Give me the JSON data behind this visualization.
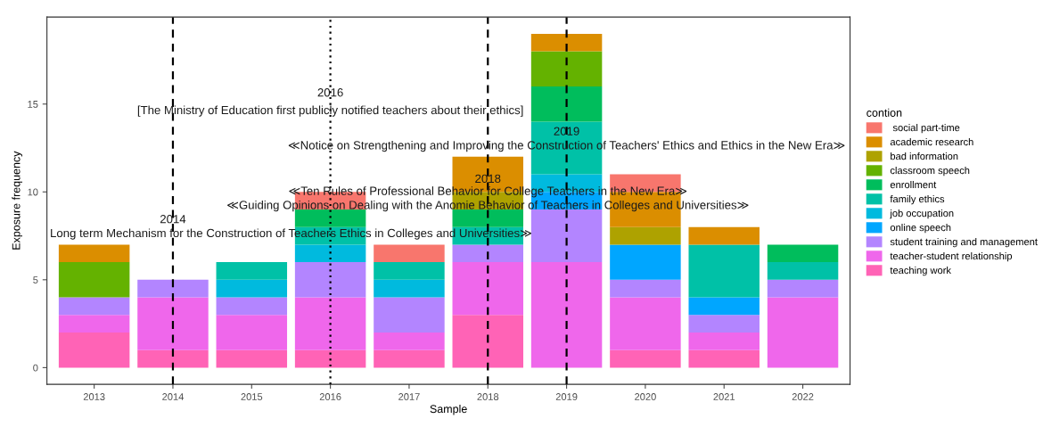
{
  "chart_data": {
    "type": "bar",
    "stacked": true,
    "xlabel": "Sample",
    "ylabel": "Exposure frequency",
    "legend_title": "contion",
    "legend": "right",
    "grid": false,
    "x": [
      2013,
      2014,
      2015,
      2016,
      2017,
      2018,
      2019,
      2020,
      2021,
      2022
    ],
    "xlim": [
      2012.4,
      2022.6
    ],
    "xticks": [
      2013,
      2014,
      2015,
      2016,
      2017,
      2018,
      2019,
      2020,
      2021,
      2022
    ],
    "ylim": [
      -0.95,
      19.95
    ],
    "yticks": [
      0,
      5,
      10,
      15
    ],
    "series": [
      {
        "name": "teaching work",
        "color": "#ff63b6",
        "values": [
          2,
          1,
          1,
          1,
          1,
          3,
          0,
          1,
          1,
          0
        ]
      },
      {
        "name": "teacher-student relationship",
        "color": "#ef67eb",
        "values": [
          1,
          3,
          2,
          3,
          1,
          3,
          6,
          3,
          1,
          4
        ]
      },
      {
        "name": "student training and management",
        "color": "#b385ff",
        "values": [
          1,
          1,
          1,
          2,
          2,
          1,
          3,
          1,
          1,
          1
        ]
      },
      {
        "name": "online speech",
        "color": "#00a6ff",
        "values": [
          0,
          0,
          0,
          0,
          0,
          0,
          1,
          2,
          1,
          0
        ]
      },
      {
        "name": "job occupation",
        "color": "#00bade",
        "values": [
          0,
          0,
          1,
          1,
          1,
          0,
          1,
          0,
          0,
          0
        ]
      },
      {
        "name": "family ethics",
        "color": "#00c1a7",
        "values": [
          0,
          0,
          1,
          1,
          1,
          1,
          3,
          0,
          3,
          1
        ]
      },
      {
        "name": "enrollment",
        "color": "#00bd5c",
        "values": [
          0,
          0,
          0,
          1,
          0,
          1,
          2,
          0,
          0,
          1
        ]
      },
      {
        "name": "classroom speech",
        "color": "#64b200",
        "values": [
          2,
          0,
          0,
          0,
          0,
          0,
          2,
          0,
          0,
          0
        ]
      },
      {
        "name": "bad information",
        "color": "#aea200",
        "values": [
          0,
          0,
          0,
          0,
          0,
          1,
          0,
          1,
          0,
          0
        ]
      },
      {
        "name": "academic research",
        "color": "#db8e00",
        "values": [
          1,
          0,
          0,
          0,
          0,
          2,
          1,
          2,
          1,
          0
        ]
      },
      {
        "name": " social part-time",
        "color": "#f8766d",
        "values": [
          0,
          0,
          0,
          1,
          1,
          0,
          0,
          1,
          0,
          0
        ]
      }
    ],
    "ref_lines": [
      {
        "axis": "x",
        "value": 2014,
        "color": "#000000",
        "line_style": "dashed"
      },
      {
        "axis": "x",
        "value": 2016,
        "color": "#000000",
        "line_style": "dotted"
      },
      {
        "axis": "x",
        "value": 2018,
        "color": "#000000",
        "line_style": "dashed"
      },
      {
        "axis": "x",
        "value": 2019,
        "color": "#000000",
        "line_style": "dashed"
      }
    ],
    "annotations": [
      {
        "text": "2016",
        "x": 2016,
        "y": 15.6
      },
      {
        "text": "[The Ministry of Education first publicly notified teachers about their ethics]",
        "x": 2016,
        "y": 14.6
      },
      {
        "text": "2019",
        "x": 2019,
        "y": 13.4
      },
      {
        "text": "≪Notice on Strengthening and Improving the Construction of Teachers' Ethics and Ethics in the New Era≫",
        "x": 2019,
        "y": 12.6
      },
      {
        "text": "2018",
        "x": 2018,
        "y": 10.7
      },
      {
        "text": "≪Ten Rules of Professional Behavior for College Teachers in the New Era≫",
        "x": 2018,
        "y": 10.0
      },
      {
        "text": "≪Guiding Opinions on Dealing with the Anomie Behavior of Teachers in Colleges and Universities≫",
        "x": 2018,
        "y": 9.2
      },
      {
        "text": "2014",
        "x": 2014,
        "y": 8.4
      },
      {
        "text": "Long term Mechanism for the Construction of Teachers Ethics in Colleges and Universities≫",
        "x": 2015.5,
        "y": 7.6
      }
    ]
  }
}
